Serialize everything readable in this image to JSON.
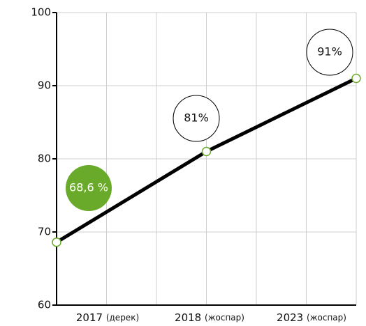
{
  "chart_data": {
    "type": "line",
    "categories": [
      "2017",
      "2018",
      "2023"
    ],
    "category_notes": [
      "(дерек)",
      "(жоспар)",
      "(жоспар)"
    ],
    "values": [
      68.6,
      81,
      91
    ],
    "value_labels": [
      "68,6 %",
      "81%",
      "91%"
    ],
    "color": "#000000",
    "marker_color": "#6aaa2a",
    "highlight_color": "#6aaa2a",
    "ylim": [
      60,
      100
    ],
    "yticks": [
      60,
      70,
      80,
      90,
      100
    ],
    "grid": true
  }
}
